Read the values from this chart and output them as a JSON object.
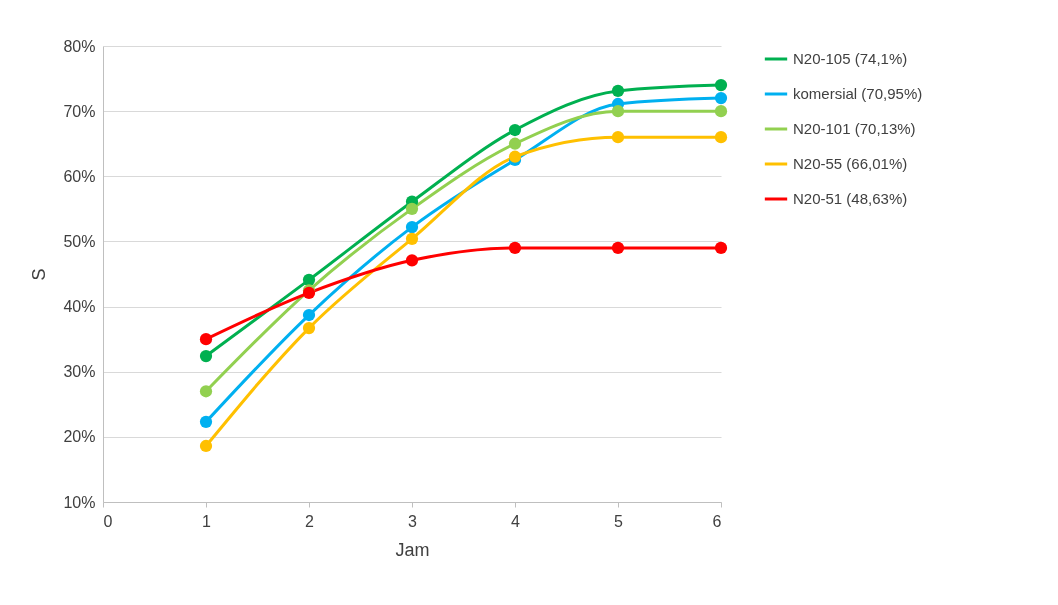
{
  "chart_data": {
    "type": "line",
    "xlabel": "Jam",
    "ylabel": "S",
    "x": [
      1,
      2,
      3,
      4,
      5,
      6
    ],
    "series": [
      {
        "name": "N20-105 (74,1%)",
        "color": "#00b050",
        "values": [
          32.4,
          44.1,
          56.1,
          67.1,
          73.1,
          74
        ]
      },
      {
        "name": "komersial (70,95%)",
        "color": "#00b0f0",
        "values": [
          22.3,
          38.7,
          52.2,
          62.5,
          71.1,
          72
        ]
      },
      {
        "name": "N20-101 (70,13%)",
        "color": "#92d050",
        "values": [
          27,
          42.5,
          55,
          65,
          70,
          70
        ]
      },
      {
        "name": "N20-55 (66,01%)",
        "color": "#ffc000",
        "values": [
          18.6,
          36.7,
          50.4,
          63,
          66,
          66
        ]
      },
      {
        "name": "N20-51 (48,63%)",
        "color": "#ff0000",
        "values": [
          35,
          42.1,
          47.1,
          49,
          49,
          49
        ]
      }
    ],
    "xlim": [
      0,
      6
    ],
    "xticks": [
      0,
      1,
      2,
      3,
      4,
      5,
      6
    ],
    "ylim": [
      10,
      80
    ],
    "yticks": [
      {
        "value": 10,
        "label": "10%"
      },
      {
        "value": 20,
        "label": "20%"
      },
      {
        "value": 30,
        "label": "30%"
      },
      {
        "value": 40,
        "label": "40%"
      },
      {
        "value": 50,
        "label": "50%"
      },
      {
        "value": 60,
        "label": "60%"
      },
      {
        "value": 70,
        "label": "70%"
      },
      {
        "value": 80,
        "label": "80%"
      }
    ],
    "grid": "y",
    "legend": "right",
    "marker": "circle",
    "line_style": "solid"
  }
}
